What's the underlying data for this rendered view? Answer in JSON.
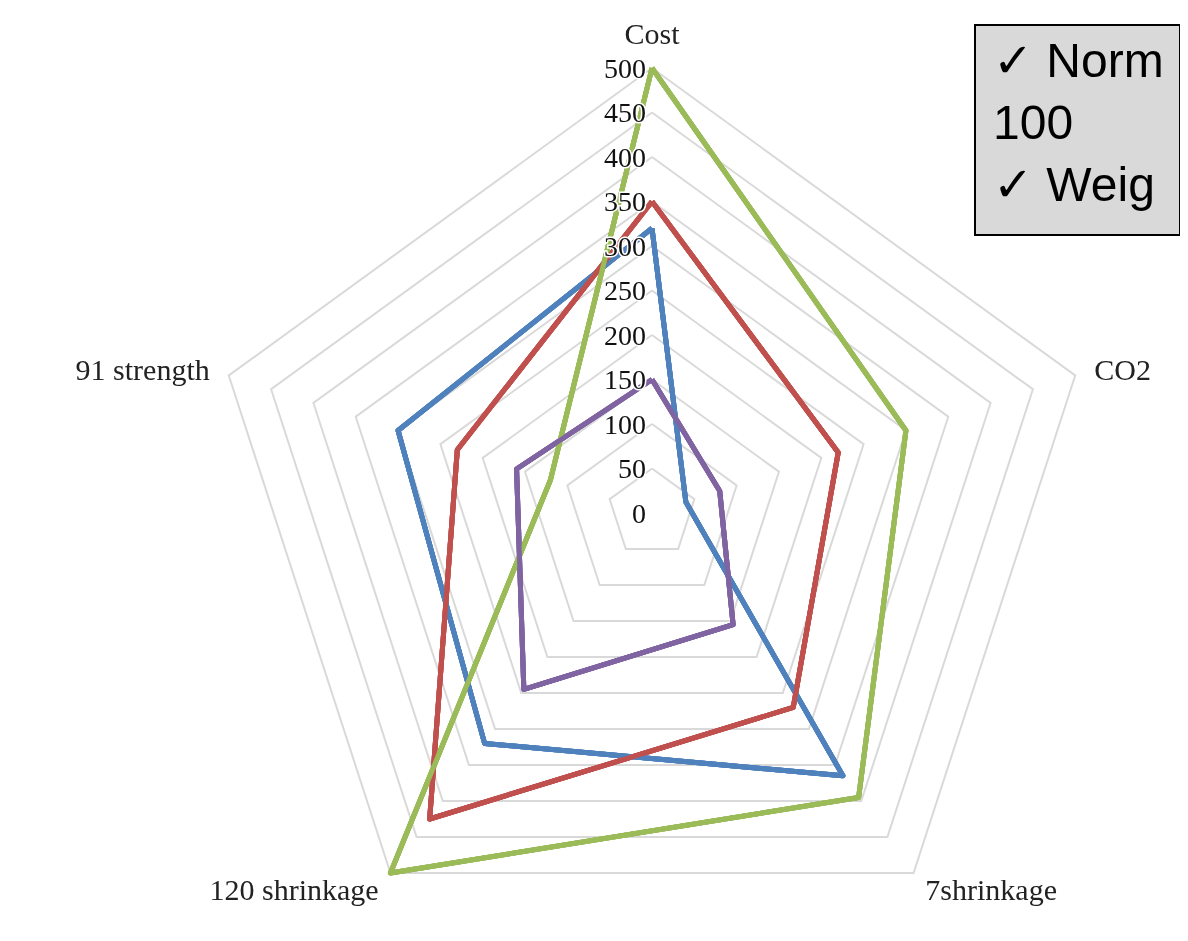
{
  "chart_data": {
    "type": "radar",
    "categories": [
      "Cost",
      "CO2",
      "7shrinkage",
      "120 shrinkage",
      "91 strength"
    ],
    "series": [
      {
        "color": "#4f81bd",
        "values": [
          320,
          40,
          365,
          320,
          300
        ]
      },
      {
        "color": "#c0504d",
        "values": [
          350,
          220,
          270,
          425,
          230
        ]
      },
      {
        "color": "#9bbb59",
        "values": [
          500,
          300,
          395,
          500,
          120
        ]
      },
      {
        "color": "#8064a2",
        "values": [
          150,
          80,
          155,
          245,
          160
        ]
      }
    ],
    "ylim": [
      0,
      500
    ],
    "yticks": [
      0,
      50,
      100,
      150,
      200,
      250,
      300,
      350,
      400,
      450,
      500
    ],
    "grid": true,
    "marker": "none",
    "line_style": "solid",
    "annotations": [
      "✓ Norm",
      "100",
      "✓ Weig"
    ]
  }
}
